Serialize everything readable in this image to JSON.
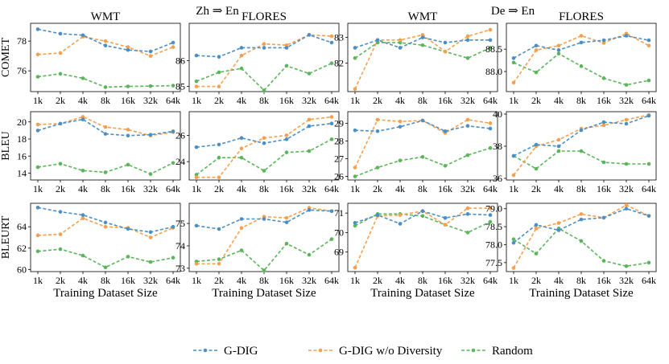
{
  "group_titles": [
    "Zh ⇒ En",
    "De ⇒ En"
  ],
  "legend": [
    {
      "name": "G-DIG",
      "color": "#4c8fc4"
    },
    {
      "name": "G-DIG w/o Diversity",
      "color": "#f5a04e"
    },
    {
      "name": "Random",
      "color": "#5bb55b"
    }
  ],
  "chart_data": {
    "type": "line",
    "x_ticks": [
      "1k",
      "2k",
      "4k",
      "8k",
      "16k",
      "32k",
      "64k"
    ],
    "xlabel": "Training Dataset Size",
    "columns": [
      "WMT",
      "FLORES",
      "WMT",
      "FLORES"
    ],
    "row_labels": [
      "COMET",
      "BLEU",
      "BLEURT"
    ],
    "panels": [
      {
        "row": 0,
        "col": 0,
        "group": "Zh ⇒ En",
        "title": "WMT",
        "ylabel": "COMET",
        "ylim": [
          74.6,
          79.2
        ],
        "yticks": [
          76,
          78
        ],
        "ytick_labels": [
          "76",
          "78"
        ],
        "series": [
          {
            "name": "G-DIG",
            "values": [
              78.8,
              78.5,
              78.4,
              77.7,
              77.4,
              77.3,
              77.9
            ]
          },
          {
            "name": "G-DIG w/o Diversity",
            "values": [
              77.1,
              77.2,
              78.3,
              78.0,
              77.6,
              77.0,
              77.6
            ]
          },
          {
            "name": "Random",
            "values": [
              75.6,
              75.8,
              75.5,
              74.9,
              74.95,
              74.97,
              75.0
            ]
          }
        ]
      },
      {
        "row": 0,
        "col": 1,
        "group": "Zh ⇒ En",
        "title": "FLORES",
        "ylim": [
          84.8,
          87.45
        ],
        "yticks": [
          85,
          86
        ],
        "ytick_labels": [
          "85",
          "86"
        ],
        "series": [
          {
            "name": "G-DIG",
            "values": [
              86.2,
              86.15,
              86.5,
              86.5,
              86.5,
              87.0,
              86.7
            ]
          },
          {
            "name": "G-DIG w/o Diversity",
            "values": [
              85.0,
              85.0,
              86.2,
              86.65,
              86.6,
              87.0,
              86.95
            ]
          },
          {
            "name": "Random",
            "values": [
              85.2,
              85.55,
              85.7,
              84.85,
              85.8,
              85.5,
              85.9
            ]
          }
        ]
      },
      {
        "row": 0,
        "col": 2,
        "group": "De ⇒ En",
        "title": "WMT",
        "ylim": [
          80.9,
          83.55
        ],
        "yticks": [
          82,
          83
        ],
        "ytick_labels": [
          "82",
          "83"
        ],
        "series": [
          {
            "name": "G-DIG",
            "values": [
              82.6,
              82.9,
              82.6,
              83.0,
              82.8,
              82.9,
              82.9
            ]
          },
          {
            "name": "G-DIG w/o Diversity",
            "values": [
              81.0,
              82.9,
              82.9,
              83.1,
              82.45,
              83.05,
              83.3
            ]
          },
          {
            "name": "Random",
            "values": [
              82.2,
              82.8,
              82.8,
              82.7,
              82.45,
              82.2,
              82.6
            ]
          }
        ]
      },
      {
        "row": 0,
        "col": 3,
        "group": "De ⇒ En",
        "title": "FLORES",
        "ylim": [
          87.55,
          89.08
        ],
        "yticks": [
          88.0,
          88.5
        ],
        "ytick_labels": [
          "88.0",
          "88.5"
        ],
        "series": [
          {
            "name": "G-DIG",
            "values": [
              88.3,
              88.58,
              88.48,
              88.65,
              88.7,
              88.8,
              88.7
            ]
          },
          {
            "name": "G-DIG w/o Diversity",
            "values": [
              87.75,
              88.48,
              88.58,
              88.8,
              88.64,
              88.85,
              88.58
            ]
          },
          {
            "name": "Random",
            "values": [
              88.2,
              87.98,
              88.4,
              88.12,
              87.85,
              87.7,
              87.8
            ]
          }
        ]
      },
      {
        "row": 1,
        "col": 0,
        "group": "Zh ⇒ En",
        "title": "WMT",
        "ylabel": "BLEU",
        "ylim": [
          13.2,
          21.2
        ],
        "yticks": [
          14,
          16,
          18,
          20
        ],
        "ytick_labels": [
          "14",
          "16",
          "18",
          "20"
        ],
        "series": [
          {
            "name": "G-DIG",
            "values": [
              19.0,
              19.8,
              20.3,
              18.6,
              18.4,
              18.5,
              18.9
            ]
          },
          {
            "name": "G-DIG w/o Diversity",
            "values": [
              19.7,
              19.8,
              20.6,
              19.4,
              19.1,
              18.4,
              18.8
            ]
          },
          {
            "name": "Random",
            "values": [
              14.7,
              15.1,
              14.3,
              14.1,
              15.0,
              13.9,
              15.2
            ]
          }
        ]
      },
      {
        "row": 1,
        "col": 1,
        "group": "Zh ⇒ En",
        "title": "FLORES",
        "ylim": [
          22.6,
          27.8
        ],
        "yticks": [
          24,
          26
        ],
        "ytick_labels": [
          "24",
          "26"
        ],
        "series": [
          {
            "name": "G-DIG",
            "values": [
              25.1,
              25.3,
              25.8,
              25.4,
              25.7,
              26.7,
              26.9
            ]
          },
          {
            "name": "G-DIG w/o Diversity",
            "values": [
              22.8,
              22.8,
              25.0,
              25.8,
              26.0,
              27.2,
              27.4
            ]
          },
          {
            "name": "Random",
            "values": [
              23.0,
              24.3,
              24.3,
              23.3,
              24.7,
              24.8,
              25.7
            ]
          }
        ]
      },
      {
        "row": 1,
        "col": 2,
        "group": "De ⇒ En",
        "title": "WMT",
        "ylim": [
          25.8,
          29.65
        ],
        "yticks": [
          26,
          27,
          28,
          29
        ],
        "ytick_labels": [
          "26",
          "27",
          "28",
          "29"
        ],
        "series": [
          {
            "name": "G-DIG",
            "values": [
              28.6,
              28.55,
              28.8,
              29.15,
              28.55,
              28.85,
              28.7
            ]
          },
          {
            "name": "G-DIG w/o Diversity",
            "values": [
              26.5,
              29.2,
              29.1,
              29.15,
              28.45,
              29.2,
              29.0
            ]
          },
          {
            "name": "Random",
            "values": [
              26.0,
              26.5,
              26.9,
              27.1,
              26.6,
              27.2,
              27.6
            ]
          }
        ]
      },
      {
        "row": 1,
        "col": 3,
        "group": "De ⇒ En",
        "title": "FLORES",
        "ylim": [
          35.9,
          40.15
        ],
        "yticks": [
          36,
          38,
          40
        ],
        "ytick_labels": [
          "36",
          "38",
          "40"
        ],
        "series": [
          {
            "name": "G-DIG",
            "values": [
              37.4,
              38.1,
              38.0,
              39.0,
              39.5,
              39.4,
              39.9
            ]
          },
          {
            "name": "G-DIG w/o Diversity",
            "values": [
              36.2,
              38.0,
              38.4,
              39.1,
              39.3,
              39.65,
              39.95
            ]
          },
          {
            "name": "Random",
            "values": [
              37.4,
              36.6,
              37.7,
              37.7,
              37.0,
              36.9,
              36.9
            ]
          }
        ]
      },
      {
        "row": 2,
        "col": 0,
        "group": "Zh ⇒ En",
        "title": "WMT",
        "ylabel": "BLEURT",
        "ylim": [
          59.8,
          66.2
        ],
        "yticks": [
          60,
          62,
          64
        ],
        "ytick_labels": [
          "60",
          "62",
          "64"
        ],
        "series": [
          {
            "name": "G-DIG",
            "values": [
              65.8,
              65.4,
              65.1,
              64.4,
              63.8,
              63.5,
              64.0
            ]
          },
          {
            "name": "G-DIG w/o Diversity",
            "values": [
              63.2,
              63.3,
              64.8,
              64.0,
              63.9,
              63.0,
              63.9
            ]
          },
          {
            "name": "Random",
            "values": [
              61.7,
              61.9,
              61.3,
              60.2,
              61.2,
              60.7,
              61.1
            ]
          }
        ]
      },
      {
        "row": 2,
        "col": 1,
        "group": "Zh ⇒ En",
        "title": "FLORES",
        "ylim": [
          72.85,
          75.9
        ],
        "yticks": [
          73,
          74,
          75
        ],
        "ytick_labels": [
          "73",
          "74",
          "75"
        ],
        "series": [
          {
            "name": "G-DIG",
            "values": [
              74.9,
              74.75,
              75.2,
              75.2,
              75.05,
              75.6,
              75.55
            ]
          },
          {
            "name": "G-DIG w/o Diversity",
            "values": [
              73.2,
              73.2,
              74.8,
              75.3,
              75.25,
              75.7,
              75.55
            ]
          },
          {
            "name": "Random",
            "values": [
              73.3,
              73.4,
              73.8,
              72.9,
              74.1,
              73.6,
              74.3
            ]
          }
        ]
      },
      {
        "row": 2,
        "col": 2,
        "group": "De ⇒ En",
        "title": "WMT",
        "ylim": [
          68.0,
          71.5
        ],
        "yticks": [
          69,
          70,
          71
        ],
        "ytick_labels": [
          "69",
          "70",
          "71"
        ],
        "series": [
          {
            "name": "G-DIG",
            "values": [
              70.5,
              70.9,
              70.45,
              71.1,
              70.75,
              70.95,
              70.9
            ]
          },
          {
            "name": "G-DIG w/o Diversity",
            "values": [
              68.2,
              70.85,
              70.9,
              71.1,
              70.4,
              71.25,
              71.25
            ]
          },
          {
            "name": "Random",
            "values": [
              70.35,
              70.95,
              70.95,
              70.85,
              70.4,
              70.0,
              70.55
            ]
          }
        ]
      },
      {
        "row": 2,
        "col": 3,
        "group": "De ⇒ En",
        "title": "FLORES",
        "ylim": [
          77.25,
          79.15
        ],
        "yticks": [
          77.5,
          78.0,
          78.5,
          79.0
        ],
        "ytick_labels": [
          "77.5",
          "78.0",
          "78.5",
          "79.0"
        ],
        "series": [
          {
            "name": "G-DIG",
            "values": [
              78.05,
              78.55,
              78.4,
              78.7,
              78.75,
              79.0,
              78.8
            ]
          },
          {
            "name": "G-DIG w/o Diversity",
            "values": [
              77.35,
              78.45,
              78.6,
              78.85,
              78.75,
              79.1,
              78.8
            ]
          },
          {
            "name": "Random",
            "values": [
              78.15,
              77.75,
              78.45,
              78.1,
              77.55,
              77.4,
              77.5
            ]
          }
        ]
      }
    ]
  }
}
